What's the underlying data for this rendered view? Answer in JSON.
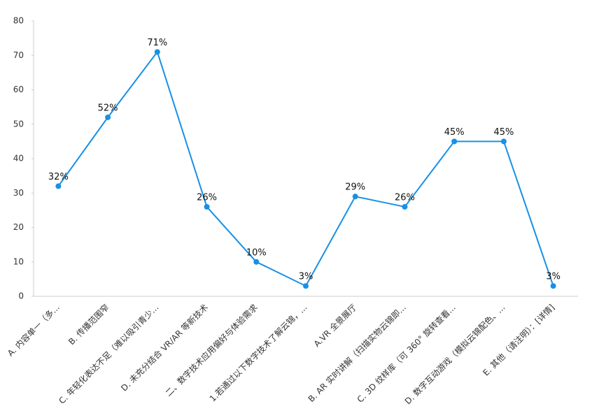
{
  "chart_data": {
    "type": "line",
    "categories": [
      "A. 内容单一（多...",
      "B. 传播范围窄",
      "C. 年轻化表达不足（难以吸引青少...",
      "D. 未充分结合 VR/AR 等新技术",
      "二、数字技术应用偏好与体验需求",
      "1.若通过以下数字技术了解云锦，...",
      "A.VR 全景展厅",
      "B. AR 实时讲解（扫描实物云锦即...",
      "C. 3D 纹样库（可 360° 旋转查看...",
      "D. 数字互动游戏（模拟云锦配色、...",
      "E. 其他（请注明）：[详情]"
    ],
    "values": [
      32,
      52,
      71,
      26,
      10,
      3,
      29,
      26,
      45,
      45,
      3
    ],
    "value_labels": [
      "32%",
      "52%",
      "71%",
      "26%",
      "10%",
      "3%",
      "29%",
      "26%",
      "45%",
      "45%",
      "3%"
    ],
    "color": "#1890e6",
    "ylim": [
      0,
      80
    ],
    "yticks": [
      0,
      10,
      20,
      30,
      40,
      50,
      60,
      70,
      80
    ],
    "grid": false
  }
}
